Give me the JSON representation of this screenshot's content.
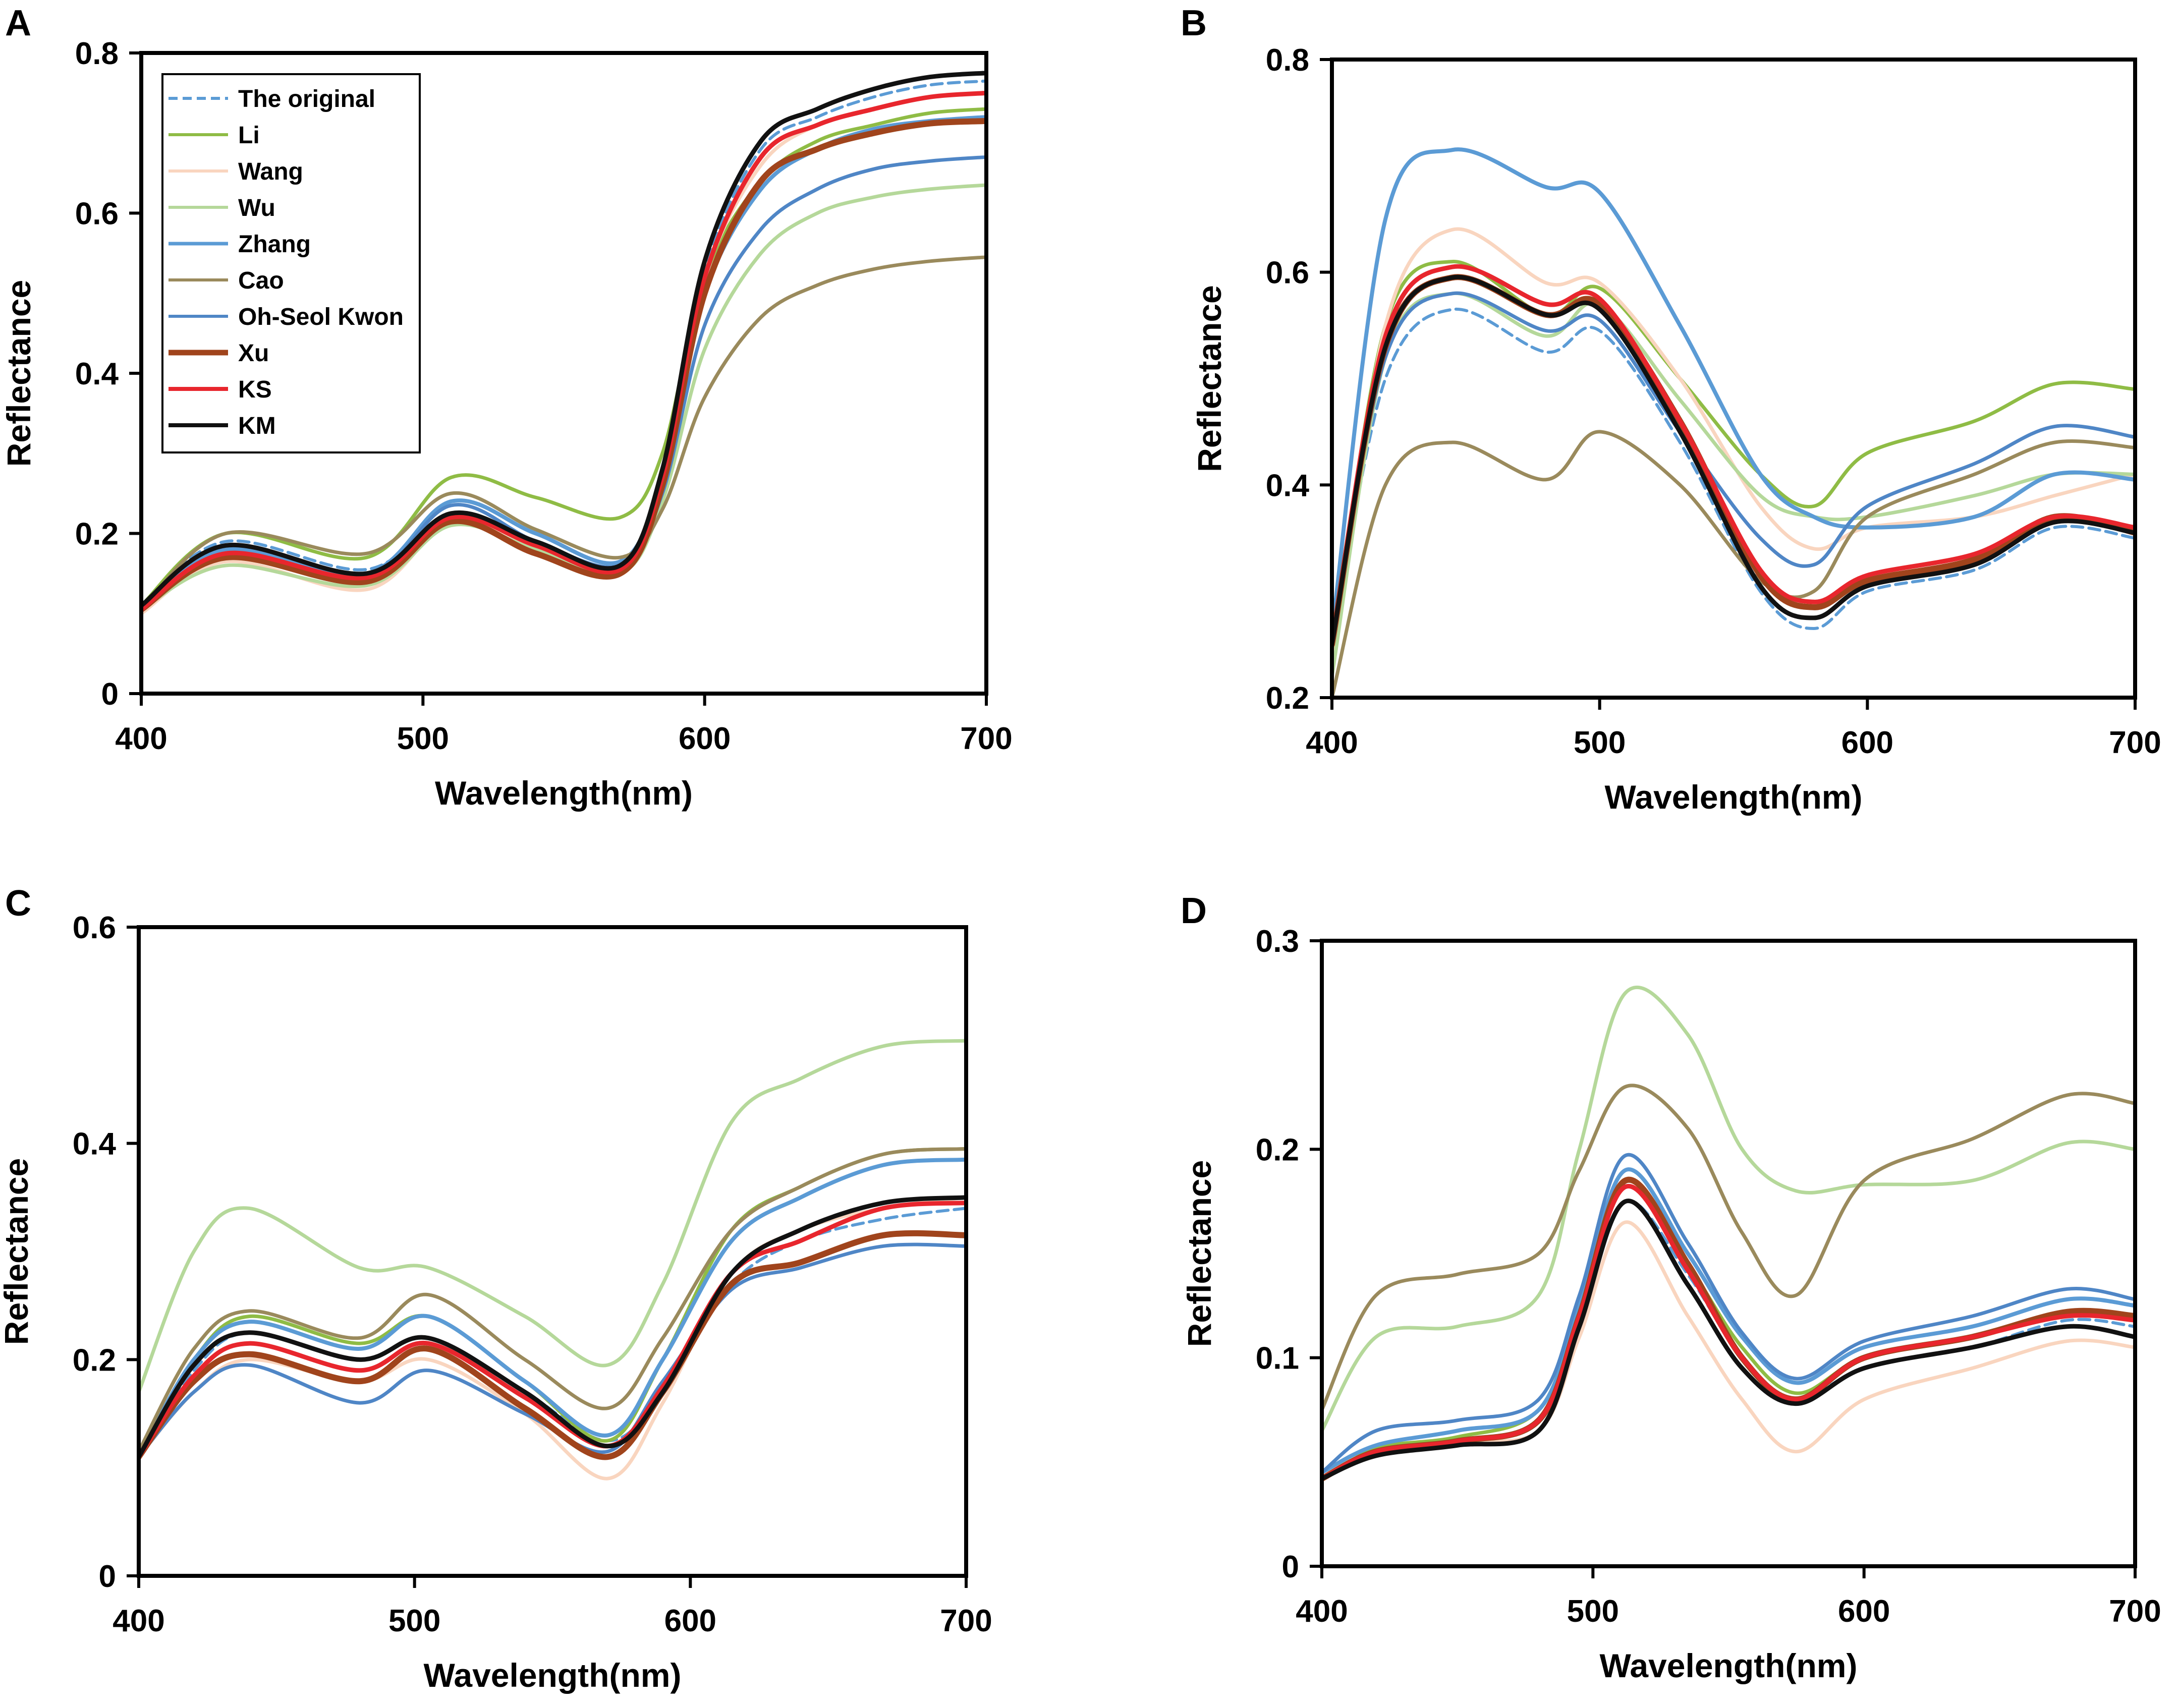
{
  "figure": {
    "series_names": [
      "The original",
      "Li",
      "Wang",
      "Wu",
      "Zhang",
      "Cao",
      "Oh-Seol Kwon",
      "Xu",
      "KS",
      "KM"
    ],
    "colors": {
      "The original": "#5b9bd5",
      "Li": "#8fbc45",
      "Wang": "#f9d5bf",
      "Wu": "#b5d89a",
      "Zhang": "#5b9bd5",
      "Cao": "#9a8a5c",
      "Oh-Seol Kwon": "#4f86c6",
      "Xu": "#a0441c",
      "KS": "#e8262d",
      "KM": "#111111"
    }
  },
  "chart_data": [
    {
      "panel": "A",
      "type": "line",
      "xlabel": "Wavelength(nm)",
      "ylabel": "Reflectance",
      "xlim": [
        400,
        700
      ],
      "ylim": [
        0,
        0.8
      ],
      "xticks": [
        "400",
        "500",
        "600",
        "700"
      ],
      "yticks": [
        "0",
        "0.2",
        "0.4",
        "0.6",
        "0.8"
      ],
      "legend": "top-left",
      "x": [
        400,
        430,
        480,
        510,
        540,
        570,
        585,
        600,
        620,
        640,
        660,
        680,
        700
      ],
      "series": [
        {
          "name": "The original",
          "values": [
            0.11,
            0.19,
            0.155,
            0.225,
            0.19,
            0.16,
            0.28,
            0.53,
            0.68,
            0.72,
            0.745,
            0.76,
            0.765
          ]
        },
        {
          "name": "Li",
          "values": [
            0.11,
            0.2,
            0.17,
            0.27,
            0.245,
            0.22,
            0.3,
            0.52,
            0.64,
            0.69,
            0.71,
            0.725,
            0.73
          ]
        },
        {
          "name": "Wang",
          "values": [
            0.1,
            0.165,
            0.13,
            0.215,
            0.185,
            0.16,
            0.28,
            0.52,
            0.66,
            0.71,
            0.73,
            0.745,
            0.75
          ]
        },
        {
          "name": "Wu",
          "values": [
            0.105,
            0.16,
            0.135,
            0.21,
            0.18,
            0.15,
            0.24,
            0.43,
            0.55,
            0.6,
            0.62,
            0.63,
            0.635
          ]
        },
        {
          "name": "Zhang",
          "values": [
            0.11,
            0.18,
            0.15,
            0.24,
            0.2,
            0.165,
            0.27,
            0.5,
            0.63,
            0.68,
            0.705,
            0.715,
            0.72
          ]
        },
        {
          "name": "Cao",
          "values": [
            0.105,
            0.2,
            0.175,
            0.25,
            0.205,
            0.17,
            0.23,
            0.37,
            0.47,
            0.51,
            0.53,
            0.54,
            0.545
          ]
        },
        {
          "name": "Oh-Seol Kwon",
          "values": [
            0.105,
            0.17,
            0.145,
            0.235,
            0.19,
            0.16,
            0.25,
            0.46,
            0.58,
            0.63,
            0.655,
            0.665,
            0.67
          ]
        },
        {
          "name": "Xu",
          "values": [
            0.105,
            0.17,
            0.14,
            0.215,
            0.175,
            0.15,
            0.26,
            0.5,
            0.64,
            0.68,
            0.7,
            0.712,
            0.715
          ]
        },
        {
          "name": "KS",
          "values": [
            0.105,
            0.175,
            0.145,
            0.22,
            0.185,
            0.155,
            0.27,
            0.52,
            0.67,
            0.71,
            0.73,
            0.745,
            0.75
          ]
        },
        {
          "name": "KM",
          "values": [
            0.11,
            0.185,
            0.15,
            0.225,
            0.19,
            0.16,
            0.28,
            0.54,
            0.69,
            0.73,
            0.755,
            0.77,
            0.775
          ]
        }
      ]
    },
    {
      "panel": "B",
      "type": "line",
      "xlabel": "Wavelength(nm)",
      "ylabel": "Reflectance",
      "xlim": [
        400,
        700
      ],
      "ylim": [
        0.2,
        0.8
      ],
      "xticks": [
        "400",
        "500",
        "600",
        "700"
      ],
      "yticks": [
        "0.2",
        "0.4",
        "0.6",
        "0.8"
      ],
      "legend": "none",
      "x": [
        400,
        420,
        445,
        480,
        500,
        530,
        560,
        580,
        600,
        640,
        670,
        700
      ],
      "series": [
        {
          "name": "The original",
          "values": [
            0.25,
            0.5,
            0.565,
            0.525,
            0.545,
            0.44,
            0.3,
            0.265,
            0.3,
            0.32,
            0.36,
            0.35
          ]
        },
        {
          "name": "Li",
          "values": [
            0.24,
            0.55,
            0.61,
            0.56,
            0.585,
            0.5,
            0.41,
            0.38,
            0.43,
            0.46,
            0.495,
            0.49
          ]
        },
        {
          "name": "Wang",
          "values": [
            0.22,
            0.55,
            0.64,
            0.59,
            0.59,
            0.5,
            0.38,
            0.34,
            0.36,
            0.37,
            0.39,
            0.41
          ]
        },
        {
          "name": "Wu",
          "values": [
            0.22,
            0.52,
            0.58,
            0.54,
            0.57,
            0.48,
            0.39,
            0.37,
            0.37,
            0.39,
            0.41,
            0.41
          ]
        },
        {
          "name": "Zhang",
          "values": [
            0.26,
            0.65,
            0.715,
            0.68,
            0.675,
            0.55,
            0.41,
            0.37,
            0.36,
            0.37,
            0.41,
            0.405
          ]
        },
        {
          "name": "Cao",
          "values": [
            0.2,
            0.4,
            0.44,
            0.405,
            0.45,
            0.4,
            0.31,
            0.3,
            0.37,
            0.41,
            0.44,
            0.435
          ]
        },
        {
          "name": "Oh-Seol Kwon",
          "values": [
            0.25,
            0.52,
            0.58,
            0.545,
            0.555,
            0.45,
            0.35,
            0.325,
            0.38,
            0.42,
            0.455,
            0.445
          ]
        },
        {
          "name": "Xu",
          "values": [
            0.25,
            0.53,
            0.595,
            0.56,
            0.57,
            0.46,
            0.315,
            0.285,
            0.31,
            0.33,
            0.37,
            0.355
          ]
        },
        {
          "name": "KS",
          "values": [
            0.25,
            0.54,
            0.605,
            0.57,
            0.575,
            0.46,
            0.32,
            0.29,
            0.315,
            0.335,
            0.37,
            0.36
          ]
        },
        {
          "name": "KM",
          "values": [
            0.25,
            0.53,
            0.595,
            0.56,
            0.565,
            0.45,
            0.305,
            0.275,
            0.305,
            0.325,
            0.365,
            0.355
          ]
        }
      ]
    },
    {
      "panel": "C",
      "type": "line",
      "xlabel": "Wavelength(nm)",
      "ylabel": "Reflectance",
      "xlim": [
        400,
        700
      ],
      "ylim": [
        0,
        0.6
      ],
      "xticks": [
        "400",
        "500",
        "600",
        "700"
      ],
      "yticks": [
        "0",
        "0.2",
        "0.4",
        "0.6"
      ],
      "legend": "none",
      "x": [
        400,
        420,
        440,
        480,
        505,
        540,
        570,
        590,
        615,
        640,
        670,
        700
      ],
      "series": [
        {
          "name": "The original",
          "values": [
            0.11,
            0.19,
            0.225,
            0.2,
            0.22,
            0.17,
            0.125,
            0.17,
            0.27,
            0.31,
            0.33,
            0.34
          ]
        },
        {
          "name": "Li",
          "values": [
            0.11,
            0.2,
            0.24,
            0.215,
            0.24,
            0.18,
            0.125,
            0.2,
            0.32,
            0.36,
            0.39,
            0.395
          ]
        },
        {
          "name": "Wang",
          "values": [
            0.11,
            0.17,
            0.2,
            0.18,
            0.2,
            0.15,
            0.09,
            0.16,
            0.28,
            0.32,
            0.34,
            0.35
          ]
        },
        {
          "name": "Wu",
          "values": [
            0.17,
            0.3,
            0.34,
            0.285,
            0.285,
            0.24,
            0.195,
            0.27,
            0.42,
            0.46,
            0.49,
            0.495
          ]
        },
        {
          "name": "Zhang",
          "values": [
            0.11,
            0.2,
            0.235,
            0.21,
            0.24,
            0.18,
            0.13,
            0.2,
            0.31,
            0.35,
            0.38,
            0.385
          ]
        },
        {
          "name": "Cao",
          "values": [
            0.115,
            0.21,
            0.245,
            0.22,
            0.26,
            0.2,
            0.155,
            0.22,
            0.32,
            0.36,
            0.39,
            0.395
          ]
        },
        {
          "name": "Oh-Seol Kwon",
          "values": [
            0.11,
            0.17,
            0.195,
            0.16,
            0.19,
            0.15,
            0.115,
            0.18,
            0.265,
            0.285,
            0.305,
            0.305
          ]
        },
        {
          "name": "Xu",
          "values": [
            0.11,
            0.18,
            0.205,
            0.18,
            0.21,
            0.155,
            0.11,
            0.17,
            0.27,
            0.29,
            0.315,
            0.315
          ]
        },
        {
          "name": "KS",
          "values": [
            0.11,
            0.185,
            0.215,
            0.19,
            0.215,
            0.165,
            0.12,
            0.175,
            0.28,
            0.31,
            0.34,
            0.345
          ]
        },
        {
          "name": "KM",
          "values": [
            0.11,
            0.195,
            0.225,
            0.2,
            0.22,
            0.17,
            0.12,
            0.17,
            0.28,
            0.32,
            0.345,
            0.35
          ]
        }
      ]
    },
    {
      "panel": "D",
      "type": "line",
      "xlabel": "Wavelength(nm)",
      "ylabel": "Reflectance",
      "xlim": [
        400,
        700
      ],
      "ylim": [
        0,
        0.3
      ],
      "xticks": [
        "400",
        "500",
        "600",
        "700"
      ],
      "yticks": [
        "0",
        "0.1",
        "0.2",
        "0.3"
      ],
      "legend": "none",
      "x": [
        400,
        420,
        450,
        480,
        495,
        512,
        535,
        555,
        575,
        600,
        640,
        675,
        700
      ],
      "series": [
        {
          "name": "The original",
          "values": [
            0.045,
            0.055,
            0.06,
            0.07,
            0.12,
            0.175,
            0.14,
            0.1,
            0.08,
            0.095,
            0.105,
            0.118,
            0.115
          ]
        },
        {
          "name": "Li",
          "values": [
            0.045,
            0.057,
            0.062,
            0.075,
            0.125,
            0.185,
            0.145,
            0.105,
            0.083,
            0.1,
            0.11,
            0.122,
            0.12
          ]
        },
        {
          "name": "Wang",
          "values": [
            0.045,
            0.055,
            0.06,
            0.065,
            0.11,
            0.165,
            0.12,
            0.08,
            0.055,
            0.08,
            0.095,
            0.108,
            0.105
          ]
        },
        {
          "name": "Wu",
          "values": [
            0.065,
            0.11,
            0.115,
            0.13,
            0.2,
            0.275,
            0.255,
            0.2,
            0.18,
            0.183,
            0.185,
            0.203,
            0.2
          ]
        },
        {
          "name": "Zhang",
          "values": [
            0.045,
            0.058,
            0.065,
            0.075,
            0.125,
            0.19,
            0.15,
            0.11,
            0.088,
            0.105,
            0.115,
            0.128,
            0.125
          ]
        },
        {
          "name": "Cao",
          "values": [
            0.075,
            0.13,
            0.14,
            0.15,
            0.19,
            0.23,
            0.21,
            0.16,
            0.13,
            0.185,
            0.205,
            0.226,
            0.222
          ]
        },
        {
          "name": "Oh-Seol Kwon",
          "values": [
            0.045,
            0.065,
            0.07,
            0.08,
            0.13,
            0.197,
            0.155,
            0.112,
            0.09,
            0.108,
            0.12,
            0.133,
            0.128
          ]
        },
        {
          "name": "Xu",
          "values": [
            0.042,
            0.055,
            0.06,
            0.07,
            0.12,
            0.185,
            0.145,
            0.1,
            0.08,
            0.1,
            0.11,
            0.122,
            0.12
          ]
        },
        {
          "name": "KS",
          "values": [
            0.042,
            0.055,
            0.06,
            0.07,
            0.12,
            0.182,
            0.142,
            0.1,
            0.08,
            0.1,
            0.11,
            0.12,
            0.118
          ]
        },
        {
          "name": "KM",
          "values": [
            0.042,
            0.053,
            0.058,
            0.065,
            0.115,
            0.175,
            0.135,
            0.095,
            0.078,
            0.095,
            0.105,
            0.115,
            0.11
          ]
        }
      ]
    }
  ]
}
